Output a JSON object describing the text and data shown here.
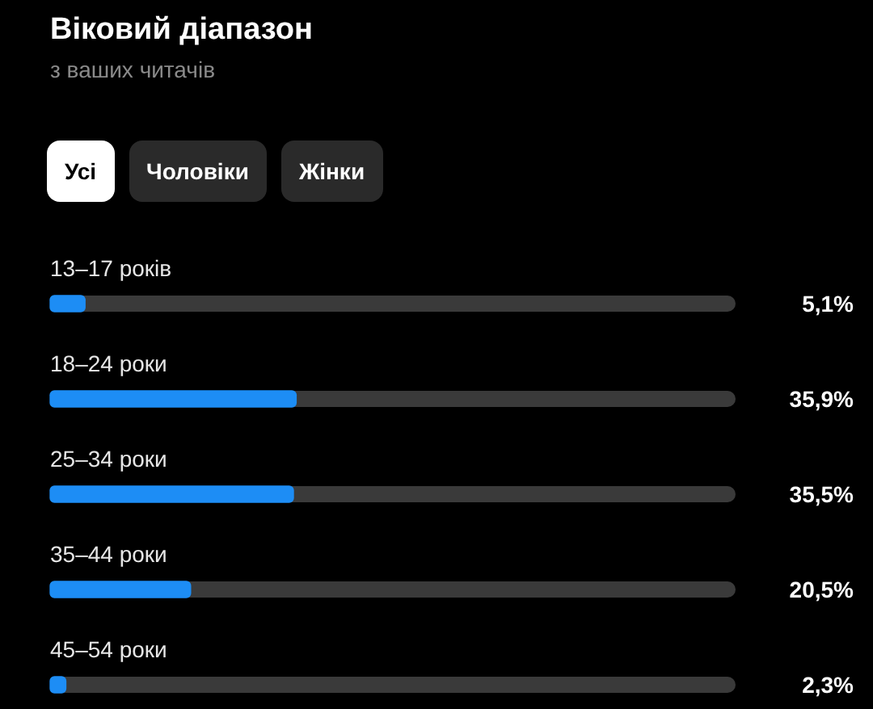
{
  "chart_data": {
    "type": "bar",
    "orientation": "horizontal",
    "title": "Віковий діапазон",
    "subtitle": "з ваших читачів",
    "annotations": [
      "Усі",
      "Чоловіки",
      "Жінки"
    ],
    "categories": [
      "13–17 років",
      "18–24 роки",
      "25–34 роки",
      "35–44 роки",
      "45–54 роки"
    ],
    "values": [
      5.1,
      35.9,
      35.5,
      20.5,
      2.3
    ],
    "value_labels": [
      "5,1%",
      "35,9%",
      "35,5%",
      "20,5%",
      "2,3%"
    ],
    "color": "#1d8df5",
    "xlim": [
      0,
      100
    ],
    "legend": false
  }
}
